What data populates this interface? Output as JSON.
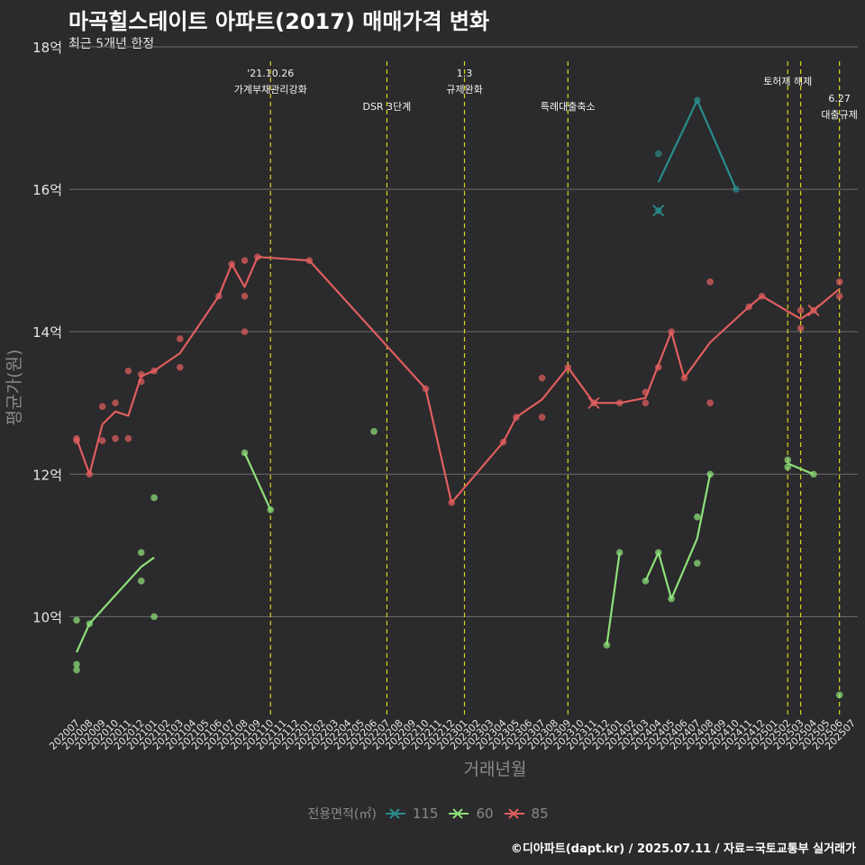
{
  "title": "마곡힐스테이트 아파트(2017) 매매가격 변화",
  "subtitle": "최근 5개년 한정",
  "caption": "©디아파트(dapt.kr) / 2025.07.11 / 자료=국토교통부 실거래가",
  "legend": {
    "title": "전용면적(㎡)",
    "items": [
      {
        "label": "115",
        "color": "#2a8c8c"
      },
      {
        "label": "60",
        "color": "#8ee07a"
      },
      {
        "label": "85",
        "color": "#e05e5e"
      }
    ]
  },
  "chart_data": {
    "type": "line",
    "xlabel": "거래년월",
    "ylabel": "평균가(원)",
    "ylim": [
      8.6,
      18.0
    ],
    "yticks": [
      10,
      12,
      14,
      16,
      18
    ],
    "ytick_labels": [
      "10억",
      "12억",
      "14억",
      "16억",
      "18억"
    ],
    "categories": [
      "202007",
      "202008",
      "202009",
      "202010",
      "202011",
      "202012",
      "202101",
      "202102",
      "202103",
      "202104",
      "202105",
      "202106",
      "202107",
      "202108",
      "202109",
      "202110",
      "202111",
      "202112",
      "202201",
      "202202",
      "202203",
      "202204",
      "202205",
      "202206",
      "202207",
      "202208",
      "202209",
      "202210",
      "202211",
      "202212",
      "202301",
      "202302",
      "202303",
      "202304",
      "202305",
      "202306",
      "202307",
      "202308",
      "202309",
      "202310",
      "202311",
      "202312",
      "202401",
      "202402",
      "202403",
      "202404",
      "202405",
      "202406",
      "202407",
      "202408",
      "202409",
      "202410",
      "202411",
      "202412",
      "202501",
      "202502",
      "202503",
      "202504",
      "202505",
      "202506",
      "202507"
    ],
    "events": [
      {
        "x": "202110",
        "label": "'21.10.26\n가계부채관리강화",
        "level": 0
      },
      {
        "x": "202207",
        "label": "DSR 3단계",
        "level": 1
      },
      {
        "x": "202301",
        "label": "1.3\n규제완화",
        "level": 0
      },
      {
        "x": "202309",
        "label": "특례대출축소",
        "level": 1
      },
      {
        "x": "202502",
        "label": "토허제 해제",
        "level": 0
      },
      {
        "x": "202503",
        "label": "",
        "level": 0
      },
      {
        "x": "202506",
        "label": "6.27\n대출규제",
        "level": 1
      }
    ],
    "series": [
      {
        "name": "115",
        "color": "#2a8c8c",
        "line": [
          [
            "202404",
            16.1
          ],
          [
            "202407",
            17.25
          ],
          [
            "202410",
            16.0
          ]
        ],
        "points": [
          [
            "202404",
            16.5
          ],
          [
            "202404",
            15.7
          ],
          [
            "202407",
            17.25
          ],
          [
            "202410",
            16.0
          ]
        ],
        "cancelled": [
          [
            "202404",
            15.7
          ]
        ]
      },
      {
        "name": "60",
        "color": "#8ee07a",
        "line_segments": [
          [
            [
              "202007",
              9.5
            ],
            [
              "202008",
              9.9
            ],
            [
              "202012",
              10.7
            ],
            [
              "202101",
              10.83
            ]
          ],
          [
            [
              "202108",
              12.3
            ],
            [
              "202110",
              11.5
            ]
          ],
          [
            [
              "202312",
              9.6
            ],
            [
              "202401",
              10.9
            ]
          ],
          [
            [
              "202403",
              10.5
            ],
            [
              "202404",
              10.9
            ],
            [
              "202405",
              10.25
            ],
            [
              "202407",
              11.1
            ],
            [
              "202408",
              12.0
            ]
          ],
          [
            [
              "202502",
              12.15
            ],
            [
              "202504",
              12.0
            ]
          ]
        ],
        "points": [
          [
            "202007",
            9.95
          ],
          [
            "202007",
            9.33
          ],
          [
            "202007",
            9.25
          ],
          [
            "202008",
            9.9
          ],
          [
            "202012",
            10.9
          ],
          [
            "202012",
            10.5
          ],
          [
            "202101",
            11.67
          ],
          [
            "202101",
            10.0
          ],
          [
            "202108",
            12.3
          ],
          [
            "202110",
            11.5
          ],
          [
            "202206",
            12.6
          ],
          [
            "202312",
            9.6
          ],
          [
            "202401",
            10.9
          ],
          [
            "202403",
            10.5
          ],
          [
            "202404",
            10.9
          ],
          [
            "202405",
            10.25
          ],
          [
            "202407",
            11.4
          ],
          [
            "202407",
            10.75
          ],
          [
            "202408",
            12.0
          ],
          [
            "202502",
            12.2
          ],
          [
            "202502",
            12.1
          ],
          [
            "202504",
            12.0
          ],
          [
            "202506",
            8.9
          ]
        ],
        "cancelled": []
      },
      {
        "name": "85",
        "color": "#e05e5e",
        "line": [
          [
            "202007",
            12.5
          ],
          [
            "202008",
            12.0
          ],
          [
            "202009",
            12.7
          ],
          [
            "202010",
            12.88
          ],
          [
            "202011",
            12.82
          ],
          [
            "202012",
            13.38
          ],
          [
            "202101",
            13.45
          ],
          [
            "202103",
            13.7
          ],
          [
            "202106",
            14.5
          ],
          [
            "202107",
            14.95
          ],
          [
            "202108",
            14.63
          ],
          [
            "202109",
            15.05
          ],
          [
            "202201",
            15.0
          ],
          [
            "202210",
            13.2
          ],
          [
            "202212",
            11.6
          ],
          [
            "202304",
            12.45
          ],
          [
            "202305",
            12.8
          ],
          [
            "202307",
            13.05
          ],
          [
            "202309",
            13.5
          ],
          [
            "202311",
            13.0
          ],
          [
            "202401",
            13.0
          ],
          [
            "202403",
            13.07
          ],
          [
            "202405",
            14.0
          ],
          [
            "202406",
            13.35
          ],
          [
            "202408",
            13.85
          ],
          [
            "202411",
            14.35
          ],
          [
            "202412",
            14.5
          ],
          [
            "202503",
            14.18
          ],
          [
            "202504",
            14.3
          ],
          [
            "202506",
            14.6
          ]
        ],
        "points": [
          [
            "202007",
            12.5
          ],
          [
            "202007",
            12.47
          ],
          [
            "202008",
            12.0
          ],
          [
            "202009",
            12.95
          ],
          [
            "202009",
            12.47
          ],
          [
            "202010",
            13.0
          ],
          [
            "202010",
            12.5
          ],
          [
            "202011",
            13.45
          ],
          [
            "202011",
            12.5
          ],
          [
            "202012",
            13.4
          ],
          [
            "202012",
            13.3
          ],
          [
            "202101",
            13.45
          ],
          [
            "202103",
            13.9
          ],
          [
            "202103",
            13.5
          ],
          [
            "202106",
            14.5
          ],
          [
            "202107",
            14.95
          ],
          [
            "202108",
            15.0
          ],
          [
            "202108",
            14.5
          ],
          [
            "202108",
            14.0
          ],
          [
            "202109",
            15.05
          ],
          [
            "202201",
            15.0
          ],
          [
            "202210",
            13.2
          ],
          [
            "202212",
            11.6
          ],
          [
            "202304",
            12.45
          ],
          [
            "202305",
            12.8
          ],
          [
            "202307",
            13.35
          ],
          [
            "202307",
            12.8
          ],
          [
            "202309",
            13.5
          ],
          [
            "202311",
            13.0
          ],
          [
            "202401",
            13.0
          ],
          [
            "202403",
            13.15
          ],
          [
            "202403",
            13.0
          ],
          [
            "202404",
            13.5
          ],
          [
            "202405",
            14.0
          ],
          [
            "202406",
            13.35
          ],
          [
            "202408",
            14.7
          ],
          [
            "202408",
            13.0
          ],
          [
            "202411",
            14.35
          ],
          [
            "202412",
            14.5
          ],
          [
            "202503",
            14.3
          ],
          [
            "202503",
            14.05
          ],
          [
            "202504",
            14.3
          ],
          [
            "202506",
            14.7
          ],
          [
            "202506",
            14.5
          ]
        ],
        "cancelled": [
          [
            "202311",
            13.0
          ],
          [
            "202504",
            14.3
          ]
        ]
      }
    ]
  }
}
